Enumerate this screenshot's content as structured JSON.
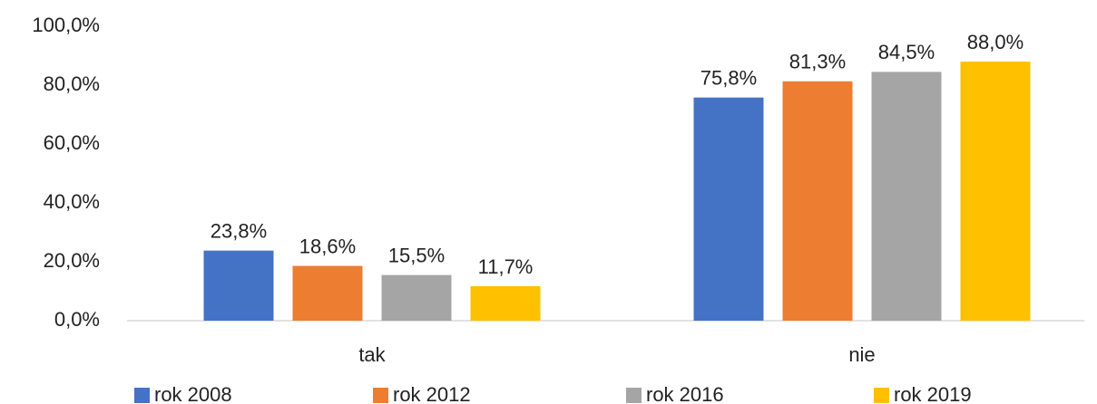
{
  "chart_data": {
    "type": "bar",
    "categories": [
      "tak",
      "nie"
    ],
    "series": [
      {
        "name": "rok 2008",
        "color": "#4472c4",
        "values": [
          23.8,
          75.8
        ],
        "value_labels": [
          "23,8%",
          "75,8%"
        ]
      },
      {
        "name": "rok 2012",
        "color": "#ed7d31",
        "values": [
          18.6,
          81.3
        ],
        "value_labels": [
          "18,6%",
          "81,3%"
        ]
      },
      {
        "name": "rok 2016",
        "color": "#a5a5a5",
        "values": [
          15.5,
          84.5
        ],
        "value_labels": [
          "15,5%",
          "84,5%"
        ]
      },
      {
        "name": "rok 2019",
        "color": "#ffc000",
        "values": [
          11.7,
          88.0
        ],
        "value_labels": [
          "11,7%",
          "88,0%"
        ]
      }
    ],
    "ylim": [
      0,
      100
    ],
    "yticks": [
      {
        "value": 0,
        "label": "0,0%"
      },
      {
        "value": 20,
        "label": "20,0%"
      },
      {
        "value": 40,
        "label": "40,0%"
      },
      {
        "value": 60,
        "label": "60,0%"
      },
      {
        "value": 80,
        "label": "80,0%"
      },
      {
        "value": 100,
        "label": "100,0%"
      }
    ],
    "grid": false,
    "legend": "bottom"
  }
}
